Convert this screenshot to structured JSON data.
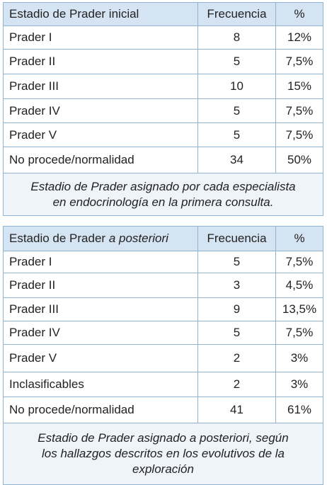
{
  "tables": [
    {
      "header": [
        "Estadio de Prader inicial",
        "Frecuencia",
        "%"
      ],
      "rows": [
        [
          "Prader I",
          "8",
          "12%"
        ],
        [
          "Prader II",
          "5",
          "7,5%"
        ],
        [
          "Prader III",
          "10",
          "15%"
        ],
        [
          "Prader IV",
          "5",
          "7,5%"
        ],
        [
          "Prader V",
          "5",
          "7,5%"
        ],
        [
          "No procede/normalidad",
          "34",
          "50%"
        ]
      ],
      "caption": [
        "Estadio de Prader asignado por cada especialista",
        "en endocrinología en la primera consulta."
      ]
    },
    {
      "header": [
        [
          "Estadio de Prader",
          "a posteriori"
        ],
        "Frecuencia",
        "%"
      ],
      "rows": [
        [
          "Prader I",
          "5",
          "7,5%"
        ],
        [
          "Prader II",
          "3",
          "4,5%"
        ],
        [
          "Prader III",
          "9",
          "13,5%"
        ],
        [
          "Prader IV",
          "5",
          "7,5%"
        ],
        [
          "Prader V",
          "2",
          "3%"
        ],
        [
          "Inclasificables",
          "2",
          "3%"
        ],
        [
          "No procede/normalidad",
          "41",
          "61%"
        ]
      ],
      "caption": [
        "Estadio de Prader asignado a posteriori, según",
        "los hallazgos descritos en los evolutivos de la",
        "exploración"
      ]
    }
  ]
}
